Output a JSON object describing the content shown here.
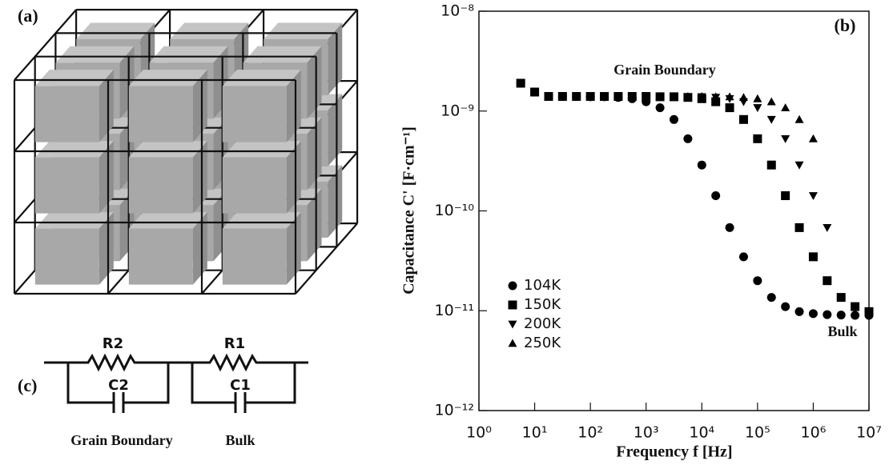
{
  "chart_data": {
    "type": "scatter",
    "panel_label": "(b)",
    "x_label": "Frequency f [Hz]",
    "y_label": "Capacitance C' [F·cm⁻¹]",
    "annotations": [
      "Grain Boundary",
      "Bulk"
    ],
    "log_x": true,
    "log_y": true,
    "legend": "lower left",
    "xlim": [
      1,
      10000000
    ],
    "ylim": [
      1e-12,
      1e-08
    ],
    "xticks": [
      {
        "value": 1,
        "label": "10⁰"
      },
      {
        "value": 10,
        "label": "10¹"
      },
      {
        "value": 100,
        "label": "10²"
      },
      {
        "value": 1000,
        "label": "10³"
      },
      {
        "value": 10000,
        "label": "10⁴"
      },
      {
        "value": 100000,
        "label": "10⁵"
      },
      {
        "value": 1000000,
        "label": "10⁶"
      },
      {
        "value": 10000000,
        "label": "10⁷"
      }
    ],
    "yticks": [
      {
        "value": 1e-12,
        "label": "10⁻¹²"
      },
      {
        "value": 1e-11,
        "label": "10⁻¹¹"
      },
      {
        "value": 1e-10,
        "label": "10⁻¹⁰"
      },
      {
        "value": 1e-09,
        "label": "10⁻⁹"
      },
      {
        "value": 1e-08,
        "label": "10⁻⁸"
      }
    ],
    "x": [
      5.62,
      10,
      17.8,
      31.6,
      56.2,
      100,
      178,
      316,
      562,
      1000,
      1778,
      3162,
      5623,
      10000,
      17783,
      31623,
      56234,
      100000,
      177828,
      316228,
      562341,
      1000000,
      1778279,
      3162278,
      5623413,
      10000000
    ],
    "series": [
      {
        "name": "104K",
        "color": "#000000",
        "marker": "circle",
        "values": [
          1.9e-09,
          1.55e-09,
          1.4e-09,
          1.4e-09,
          1.4e-09,
          1.39e-09,
          1.39e-09,
          1.37e-09,
          1.33e-09,
          1.24e-09,
          1.08e-09,
          8.23e-10,
          5.28e-10,
          2.88e-10,
          1.42e-10,
          6.8e-11,
          3.47e-11,
          2e-11,
          1.36e-11,
          1.1e-11,
          9.8e-12,
          9.35e-12,
          9.15e-12,
          9.06e-12,
          9e-12,
          9e-12
        ]
      },
      {
        "name": "150K",
        "color": "#000000",
        "marker": "square",
        "values": [
          1.9e-09,
          1.55e-09,
          1.4e-09,
          1.4e-09,
          1.4e-09,
          1.4e-09,
          1.4e-09,
          1.4e-09,
          1.4e-09,
          1.4e-09,
          1.39e-09,
          1.39e-09,
          1.37e-09,
          1.33e-09,
          1.24e-09,
          1.08e-09,
          8.23e-10,
          5.28e-10,
          2.88e-10,
          1.42e-10,
          6.8e-11,
          3.47e-11,
          2e-11,
          1.36e-11,
          1.1e-11,
          9.8e-12
        ]
      },
      {
        "name": "200K",
        "color": "#000000",
        "marker": "triangle-down",
        "values": [
          1.9e-09,
          1.55e-09,
          1.4e-09,
          1.4e-09,
          1.4e-09,
          1.4e-09,
          1.4e-09,
          1.4e-09,
          1.4e-09,
          1.4e-09,
          1.4e-09,
          1.4e-09,
          1.39e-09,
          1.39e-09,
          1.37e-09,
          1.33e-09,
          1.24e-09,
          1.08e-09,
          8.23e-10,
          5.28e-10,
          2.88e-10,
          1.42e-10,
          6.8e-11,
          null,
          null,
          null
        ]
      },
      {
        "name": "250K",
        "color": "#000000",
        "marker": "triangle-up",
        "values": [
          1.9e-09,
          1.55e-09,
          1.4e-09,
          1.4e-09,
          1.4e-09,
          1.4e-09,
          1.4e-09,
          1.4e-09,
          1.4e-09,
          1.4e-09,
          1.4e-09,
          1.4e-09,
          1.4e-09,
          1.4e-09,
          1.39e-09,
          1.39e-09,
          1.37e-09,
          1.33e-09,
          1.24e-09,
          1.08e-09,
          8.23e-10,
          5.28e-10,
          null,
          null,
          null,
          null
        ]
      }
    ]
  },
  "panels": {
    "a": {
      "label": "(a)"
    },
    "c": {
      "label": "(c)",
      "components": [
        "R2",
        "C2",
        "R1",
        "C1"
      ],
      "captions": [
        "Grain Boundary",
        "Bulk"
      ]
    }
  }
}
